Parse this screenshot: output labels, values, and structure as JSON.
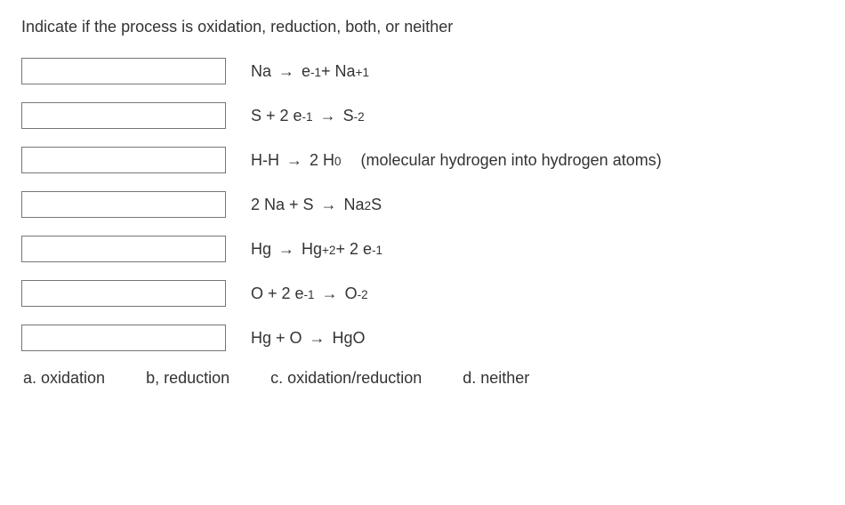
{
  "prompt": "Indicate if the process is oxidation, reduction, both, or neither",
  "equations": [
    {
      "pre": "Na ",
      "arrow": "→",
      "post": " e",
      "sup1": "-1",
      "mid1": " + Na",
      "sup2": "+1",
      "mid2": "",
      "note": ""
    },
    {
      "pre": "S + 2 e",
      "sup0": "-1",
      "arrow": "→",
      "post": " S",
      "sup1": "-2",
      "mid1": "",
      "note": ""
    },
    {
      "pre": "H-H ",
      "arrow": "→",
      "post": " 2 H",
      "sup1": "0",
      "mid1": "",
      "note": "(molecular hydrogen into hydrogen atoms)"
    },
    {
      "pre": "2 Na + S ",
      "arrow": "→",
      "post": " Na",
      "sub1": "2",
      "mid1": "S",
      "note": ""
    },
    {
      "pre": "Hg ",
      "arrow": "→",
      "post": " Hg",
      "sup1": "+2",
      "mid1": " + 2 e",
      "sup2": "-1",
      "mid2": "",
      "note": ""
    },
    {
      "pre": "O + 2 e",
      "sup0": "-1",
      "mid0": " ",
      "arrow": "→",
      "post": " O",
      "sup1": "-2",
      "mid1": "",
      "note": ""
    },
    {
      "pre": "Hg + O ",
      "arrow": "→",
      "post": " HgO",
      "note": ""
    }
  ],
  "choices": {
    "a": "a. oxidation",
    "b": "b, reduction",
    "c": "c. oxidation/reduction",
    "d": "d. neither"
  },
  "colors": {
    "text": "#333333",
    "background": "#ffffff",
    "input_border": "#767676"
  },
  "fontsize_pt": 14
}
